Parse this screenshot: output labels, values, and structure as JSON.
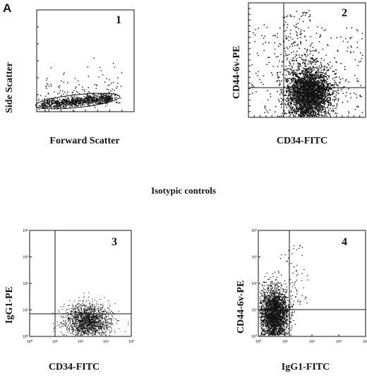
{
  "figure": {
    "panel_letter": "A",
    "section_title": "Isotypic controls"
  },
  "chart_data": [
    {
      "type": "scatter",
      "plot_number": "1",
      "xlabel": "Forward Scatter",
      "ylabel": "Side Scatter",
      "xscale": "linear",
      "yscale": "linear",
      "tick_labels": false,
      "gate": "elliptical region around main cell population",
      "color": "#111111"
    },
    {
      "type": "scatter",
      "plot_number": "2",
      "xlabel": "CD34-FITC",
      "ylabel": "CD44-6v-PE",
      "xscale": "log",
      "yscale": "log",
      "tick_labels": false,
      "quadrant_lines": true,
      "color": "#111111"
    },
    {
      "type": "scatter",
      "plot_number": "3",
      "xlabel": "CD34-FITC",
      "ylabel": "IgG1-PE",
      "xscale": "log",
      "yscale": "log",
      "x_tick_labels": [
        "10⁰",
        "10¹",
        "10²",
        "10³",
        "10⁴"
      ],
      "y_tick_labels": [
        "10⁰",
        "10¹",
        "10²",
        "10³",
        "10⁴"
      ],
      "quadrant_lines": true,
      "color": "#111111"
    },
    {
      "type": "scatter",
      "plot_number": "4",
      "xlabel": "IgG1-FITC",
      "ylabel": "CD44-6v-PE",
      "xscale": "log",
      "yscale": "log",
      "x_tick_labels": [
        "10⁰",
        "10¹",
        "10²",
        "10³",
        "10⁴"
      ],
      "y_tick_labels": [
        "10⁰",
        "10¹",
        "10²",
        "10³",
        "10⁴"
      ],
      "quadrant_lines": true,
      "color": "#111111"
    }
  ]
}
